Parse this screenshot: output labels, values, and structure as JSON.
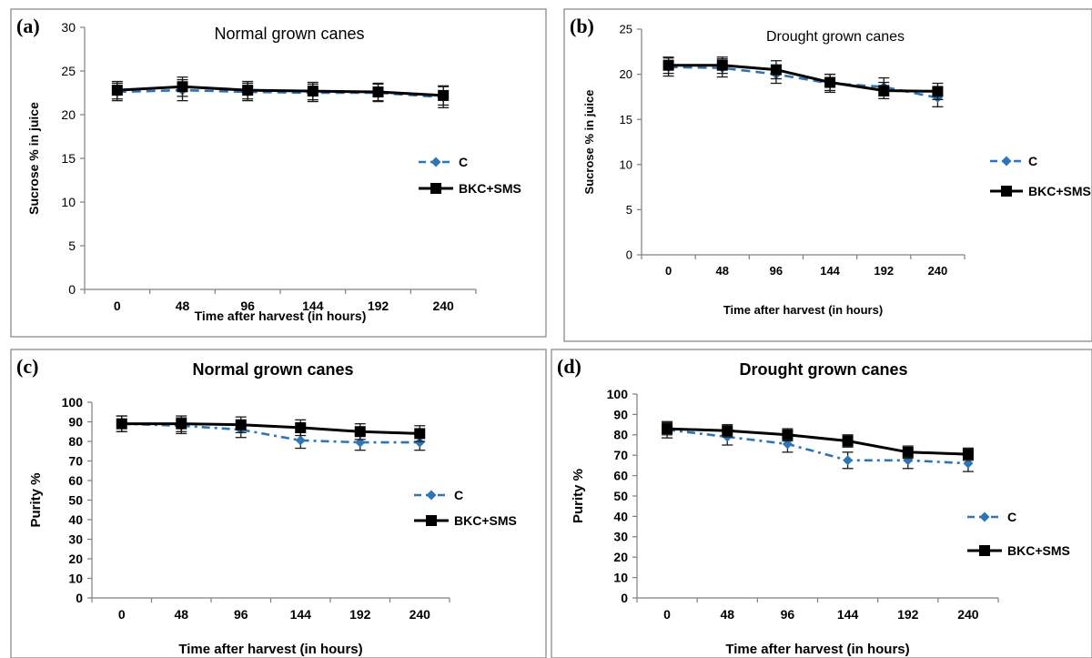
{
  "legend": {
    "control_label": "C",
    "treatment_label": "BKC+SMS"
  },
  "colors": {
    "control": "#2e75b6",
    "treatment": "#000000"
  },
  "chart_data": [
    {
      "id": "a",
      "panel_label": "(a)",
      "type": "line",
      "title": "Normal grown canes",
      "xlabel": "Time after harvest (in hours)",
      "ylabel": "Sucrose % in juice",
      "x": [
        "0",
        "48",
        "96",
        "144",
        "192",
        "240"
      ],
      "ylim": [
        0,
        30
      ],
      "yticks": [
        0,
        5,
        10,
        15,
        20,
        25,
        30
      ],
      "series": [
        {
          "name": "C",
          "values": [
            22.6,
            22.8,
            22.6,
            22.5,
            22.5,
            22.0
          ],
          "error": [
            1.0,
            1.2,
            1.0,
            1.0,
            1.0,
            1.2
          ]
        },
        {
          "name": "BKC+SMS",
          "values": [
            22.8,
            23.2,
            22.8,
            22.7,
            22.6,
            22.2
          ],
          "error": [
            1.0,
            1.1,
            1.0,
            1.0,
            1.0,
            1.1
          ]
        }
      ],
      "legend_position": "right"
    },
    {
      "id": "b",
      "panel_label": "(b)",
      "type": "line",
      "title": "Drought grown canes",
      "xlabel": "Time after harvest (in hours)",
      "ylabel": "Sucrose % in juice",
      "x": [
        "0",
        "48",
        "96",
        "144",
        "192",
        "240"
      ],
      "ylim": [
        0,
        25
      ],
      "yticks": [
        0,
        5,
        10,
        15,
        20,
        25
      ],
      "series": [
        {
          "name": "C",
          "values": [
            20.8,
            20.7,
            20.0,
            19.0,
            18.6,
            17.4
          ],
          "error": [
            1.0,
            1.0,
            1.0,
            1.0,
            1.0,
            1.0
          ]
        },
        {
          "name": "BKC+SMS",
          "values": [
            21.0,
            21.0,
            20.5,
            19.1,
            18.2,
            18.1
          ],
          "error": [
            0.9,
            0.9,
            1.0,
            0.9,
            0.9,
            0.9
          ]
        }
      ],
      "legend_position": "right"
    },
    {
      "id": "c",
      "panel_label": "(c)",
      "type": "line",
      "title": "Normal grown canes",
      "xlabel": "Time after harvest (in hours)",
      "ylabel": "Purity %",
      "x": [
        "0",
        "48",
        "96",
        "144",
        "192",
        "240"
      ],
      "ylim": [
        0,
        100
      ],
      "yticks": [
        0,
        10,
        20,
        30,
        40,
        50,
        60,
        70,
        80,
        90,
        100
      ],
      "series": [
        {
          "name": "C",
          "values": [
            89,
            88,
            86,
            80.5,
            79.5,
            79.5
          ],
          "error": [
            4,
            4,
            4,
            4,
            4,
            4
          ]
        },
        {
          "name": "BKC+SMS",
          "values": [
            89,
            89,
            88.5,
            87,
            85,
            84
          ],
          "error": [
            4,
            4,
            4,
            4,
            4,
            4
          ]
        }
      ],
      "legend_position": "right"
    },
    {
      "id": "d",
      "panel_label": "(d)",
      "type": "line",
      "title": "Drought grown canes",
      "xlabel": "Time after harvest (in hours)",
      "ylabel": "Purity %",
      "x": [
        "0",
        "48",
        "96",
        "144",
        "192",
        "240"
      ],
      "ylim": [
        0,
        100
      ],
      "yticks": [
        0,
        10,
        20,
        30,
        40,
        50,
        60,
        70,
        80,
        90,
        100
      ],
      "series": [
        {
          "name": "C",
          "values": [
            82.5,
            79,
            75.5,
            67.5,
            67.5,
            66
          ],
          "error": [
            4,
            4,
            4,
            4,
            4,
            4
          ]
        },
        {
          "name": "BKC+SMS",
          "values": [
            83,
            82,
            80,
            77,
            71.5,
            70.5
          ],
          "error": [
            3,
            3,
            3,
            3,
            3,
            3
          ]
        }
      ],
      "legend_position": "right"
    }
  ]
}
